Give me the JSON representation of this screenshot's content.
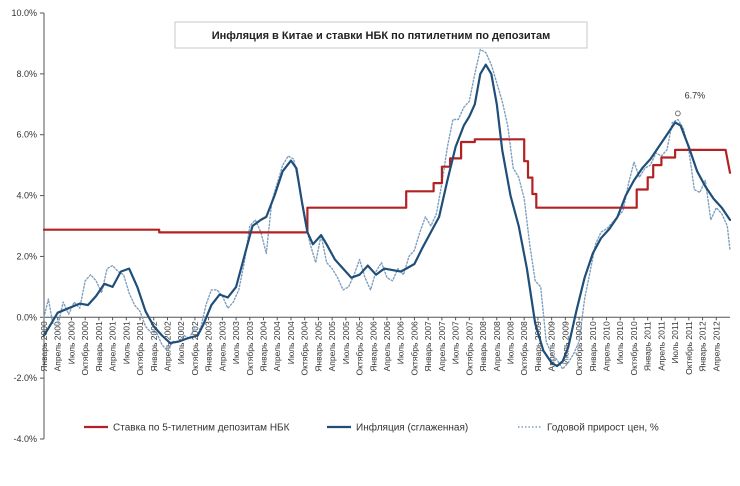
{
  "chart_data": {
    "type": "line",
    "title": "Инфляция в Китае и ставки НБК по пятилетним по депозитам",
    "ylim": [
      -4.0,
      10.0
    ],
    "yticks": [
      -4,
      -2,
      0,
      2,
      4,
      6,
      8,
      10
    ],
    "ytick_labels": [
      "-4.0%",
      "-2.0%",
      "0.0%",
      "2.0%",
      "4.0%",
      "6.0%",
      "8.0%",
      "10.0%"
    ],
    "xlim": [
      2000.0,
      2012.5
    ],
    "x_tick_labels": [
      "Январь 2000",
      "Апрель 2000",
      "Июль 2000",
      "Октябрь 2000",
      "Январь 2001",
      "Апрель 2001",
      "Июль 2001",
      "Октябрь 2001",
      "Январь 2002",
      "Апрель 2002",
      "Июль 2002",
      "Октябрь 2002",
      "Январь 2003",
      "Апрель 2003",
      "Июль 2003",
      "Октябрь 2003",
      "Январь 2004",
      "Апрель 2004",
      "Июль 2004",
      "Октябрь 2004",
      "Январь 2005",
      "Апрель 2005",
      "Июль 2005",
      "Октябрь 2005",
      "Январь 2006",
      "Апрель 2006",
      "Июль 2006",
      "Октябрь 2006",
      "Январь 2007",
      "Апрель 2007",
      "Июль 2007",
      "Октябрь 2007",
      "Январь 2008",
      "Апрель 2008",
      "Июль 2008",
      "Октябрь 2008",
      "Январь 2009",
      "Апрель 2009",
      "Июль 2009",
      "Октябрь 2009",
      "Январь 2010",
      "Апрель 2010",
      "Июль 2010",
      "Октябрь 2010",
      "Январь 2011",
      "Апрель 2011",
      "Июль 2011",
      "Октябрь 2011",
      "Январь 2012",
      "Апрель 2012"
    ],
    "grid": false,
    "legend_position": "bottom",
    "annotation": {
      "text": "6.7%",
      "x": 2011.55,
      "y": 6.7
    },
    "series": [
      {
        "name": "Ставка по 5-тилетним депозитам НБК",
        "color": "#b22222",
        "style": "step",
        "points": [
          [
            2000.0,
            2.88
          ],
          [
            2002.1,
            2.88
          ],
          [
            2002.1,
            2.79
          ],
          [
            2004.8,
            2.79
          ],
          [
            2004.8,
            3.6
          ],
          [
            2006.6,
            3.6
          ],
          [
            2006.6,
            4.14
          ],
          [
            2007.1,
            4.14
          ],
          [
            2007.1,
            4.41
          ],
          [
            2007.25,
            4.41
          ],
          [
            2007.25,
            4.95
          ],
          [
            2007.4,
            4.95
          ],
          [
            2007.4,
            5.22
          ],
          [
            2007.6,
            5.22
          ],
          [
            2007.6,
            5.76
          ],
          [
            2007.85,
            5.76
          ],
          [
            2007.85,
            5.85
          ],
          [
            2008.75,
            5.85
          ],
          [
            2008.75,
            5.13
          ],
          [
            2008.82,
            5.13
          ],
          [
            2008.82,
            4.59
          ],
          [
            2008.9,
            4.59
          ],
          [
            2008.9,
            4.05
          ],
          [
            2008.97,
            4.05
          ],
          [
            2008.97,
            3.6
          ],
          [
            2010.8,
            3.6
          ],
          [
            2010.8,
            4.2
          ],
          [
            2011.0,
            4.2
          ],
          [
            2011.0,
            4.6
          ],
          [
            2011.1,
            4.6
          ],
          [
            2011.1,
            5.0
          ],
          [
            2011.25,
            5.0
          ],
          [
            2011.25,
            5.25
          ],
          [
            2011.5,
            5.25
          ],
          [
            2011.5,
            5.5
          ],
          [
            2012.42,
            5.5
          ],
          [
            2012.5,
            4.75
          ]
        ]
      },
      {
        "name": "Инфляция (сглаженная)",
        "color": "#1f4e79",
        "style": "solid",
        "points": [
          [
            2000.0,
            -0.6
          ],
          [
            2000.1,
            -0.3
          ],
          [
            2000.25,
            0.15
          ],
          [
            2000.45,
            0.3
          ],
          [
            2000.65,
            0.45
          ],
          [
            2000.8,
            0.4
          ],
          [
            2000.95,
            0.7
          ],
          [
            2001.1,
            1.1
          ],
          [
            2001.25,
            1.0
          ],
          [
            2001.4,
            1.5
          ],
          [
            2001.55,
            1.6
          ],
          [
            2001.7,
            1.0
          ],
          [
            2001.85,
            0.2
          ],
          [
            2002.0,
            -0.3
          ],
          [
            2002.15,
            -0.6
          ],
          [
            2002.3,
            -0.85
          ],
          [
            2002.45,
            -0.8
          ],
          [
            2002.6,
            -0.7
          ],
          [
            2002.8,
            -0.6
          ],
          [
            2002.9,
            -0.25
          ],
          [
            2003.05,
            0.4
          ],
          [
            2003.2,
            0.75
          ],
          [
            2003.35,
            0.65
          ],
          [
            2003.5,
            1.0
          ],
          [
            2003.65,
            2.0
          ],
          [
            2003.8,
            3.0
          ],
          [
            2003.95,
            3.2
          ],
          [
            2004.05,
            3.3
          ],
          [
            2004.2,
            4.0
          ],
          [
            2004.35,
            4.8
          ],
          [
            2004.5,
            5.15
          ],
          [
            2004.6,
            4.9
          ],
          [
            2004.7,
            3.8
          ],
          [
            2004.8,
            2.8
          ],
          [
            2004.9,
            2.4
          ],
          [
            2005.05,
            2.7
          ],
          [
            2005.15,
            2.4
          ],
          [
            2005.3,
            1.9
          ],
          [
            2005.45,
            1.6
          ],
          [
            2005.6,
            1.3
          ],
          [
            2005.75,
            1.4
          ],
          [
            2005.9,
            1.7
          ],
          [
            2006.05,
            1.4
          ],
          [
            2006.2,
            1.6
          ],
          [
            2006.35,
            1.55
          ],
          [
            2006.5,
            1.5
          ],
          [
            2006.6,
            1.6
          ],
          [
            2006.75,
            1.75
          ],
          [
            2006.9,
            2.3
          ],
          [
            2007.05,
            2.8
          ],
          [
            2007.2,
            3.3
          ],
          [
            2007.35,
            4.5
          ],
          [
            2007.5,
            5.6
          ],
          [
            2007.65,
            6.3
          ],
          [
            2007.75,
            6.6
          ],
          [
            2007.85,
            7.0
          ],
          [
            2007.95,
            8.0
          ],
          [
            2008.05,
            8.3
          ],
          [
            2008.15,
            8.0
          ],
          [
            2008.25,
            7.0
          ],
          [
            2008.35,
            5.5
          ],
          [
            2008.5,
            4.0
          ],
          [
            2008.65,
            3.0
          ],
          [
            2008.8,
            1.6
          ],
          [
            2008.95,
            -0.2
          ],
          [
            2009.1,
            -1.1
          ],
          [
            2009.25,
            -1.5
          ],
          [
            2009.35,
            -1.6
          ],
          [
            2009.45,
            -1.45
          ],
          [
            2009.55,
            -1.0
          ],
          [
            2009.7,
            0.2
          ],
          [
            2009.85,
            1.3
          ],
          [
            2010.0,
            2.1
          ],
          [
            2010.15,
            2.6
          ],
          [
            2010.3,
            2.9
          ],
          [
            2010.45,
            3.3
          ],
          [
            2010.6,
            4.0
          ],
          [
            2010.75,
            4.5
          ],
          [
            2010.9,
            4.9
          ],
          [
            2011.05,
            5.2
          ],
          [
            2011.2,
            5.6
          ],
          [
            2011.35,
            6.0
          ],
          [
            2011.5,
            6.4
          ],
          [
            2011.6,
            6.3
          ],
          [
            2011.75,
            5.6
          ],
          [
            2011.9,
            4.8
          ],
          [
            2012.05,
            4.3
          ],
          [
            2012.2,
            3.9
          ],
          [
            2012.35,
            3.6
          ],
          [
            2012.5,
            3.2
          ]
        ]
      },
      {
        "name": "Годовой прирост цен, %",
        "color": "#7f9fbf",
        "style": "dotted",
        "points": [
          [
            2000.0,
            0.0
          ],
          [
            2000.08,
            0.6
          ],
          [
            2000.16,
            -0.2
          ],
          [
            2000.25,
            -0.3
          ],
          [
            2000.35,
            0.5
          ],
          [
            2000.45,
            0.1
          ],
          [
            2000.55,
            0.5
          ],
          [
            2000.65,
            0.3
          ],
          [
            2000.75,
            1.2
          ],
          [
            2000.85,
            1.4
          ],
          [
            2000.95,
            1.2
          ],
          [
            2001.05,
            0.8
          ],
          [
            2001.15,
            1.6
          ],
          [
            2001.25,
            1.7
          ],
          [
            2001.35,
            1.5
          ],
          [
            2001.45,
            1.4
          ],
          [
            2001.55,
            0.8
          ],
          [
            2001.65,
            0.4
          ],
          [
            2001.75,
            0.2
          ],
          [
            2001.85,
            -0.3
          ],
          [
            2001.95,
            -0.5
          ],
          [
            2002.05,
            -0.5
          ],
          [
            2002.15,
            -0.9
          ],
          [
            2002.25,
            -1.1
          ],
          [
            2002.35,
            -0.8
          ],
          [
            2002.45,
            -0.8
          ],
          [
            2002.55,
            -0.6
          ],
          [
            2002.65,
            -0.7
          ],
          [
            2002.75,
            -0.3
          ],
          [
            2002.85,
            -0.4
          ],
          [
            2002.95,
            0.4
          ],
          [
            2003.05,
            0.9
          ],
          [
            2003.15,
            0.9
          ],
          [
            2003.25,
            0.7
          ],
          [
            2003.35,
            0.3
          ],
          [
            2003.45,
            0.5
          ],
          [
            2003.55,
            0.9
          ],
          [
            2003.65,
            1.8
          ],
          [
            2003.75,
            3.0
          ],
          [
            2003.85,
            3.2
          ],
          [
            2003.95,
            2.8
          ],
          [
            2004.05,
            2.1
          ],
          [
            2004.15,
            3.8
          ],
          [
            2004.25,
            4.4
          ],
          [
            2004.35,
            5.0
          ],
          [
            2004.45,
            5.3
          ],
          [
            2004.55,
            5.2
          ],
          [
            2004.65,
            4.3
          ],
          [
            2004.75,
            3.2
          ],
          [
            2004.85,
            2.4
          ],
          [
            2004.95,
            1.8
          ],
          [
            2005.05,
            2.7
          ],
          [
            2005.15,
            1.8
          ],
          [
            2005.25,
            1.6
          ],
          [
            2005.35,
            1.3
          ],
          [
            2005.45,
            0.9
          ],
          [
            2005.55,
            1.0
          ],
          [
            2005.65,
            1.4
          ],
          [
            2005.75,
            1.9
          ],
          [
            2005.85,
            1.3
          ],
          [
            2005.95,
            0.9
          ],
          [
            2006.05,
            1.5
          ],
          [
            2006.15,
            1.8
          ],
          [
            2006.25,
            1.3
          ],
          [
            2006.35,
            1.2
          ],
          [
            2006.45,
            1.6
          ],
          [
            2006.55,
            1.4
          ],
          [
            2006.65,
            2.0
          ],
          [
            2006.75,
            2.2
          ],
          [
            2006.85,
            2.8
          ],
          [
            2006.95,
            3.3
          ],
          [
            2007.05,
            3.0
          ],
          [
            2007.15,
            3.4
          ],
          [
            2007.25,
            4.4
          ],
          [
            2007.35,
            5.6
          ],
          [
            2007.45,
            6.5
          ],
          [
            2007.55,
            6.5
          ],
          [
            2007.65,
            6.9
          ],
          [
            2007.75,
            7.1
          ],
          [
            2007.85,
            8.0
          ],
          [
            2007.95,
            8.8
          ],
          [
            2008.05,
            8.7
          ],
          [
            2008.15,
            8.3
          ],
          [
            2008.25,
            7.7
          ],
          [
            2008.35,
            7.1
          ],
          [
            2008.45,
            6.3
          ],
          [
            2008.55,
            4.9
          ],
          [
            2008.65,
            4.6
          ],
          [
            2008.75,
            3.9
          ],
          [
            2008.85,
            2.4
          ],
          [
            2008.95,
            1.2
          ],
          [
            2009.05,
            1.0
          ],
          [
            2009.15,
            -0.8
          ],
          [
            2009.25,
            -1.2
          ],
          [
            2009.35,
            -1.4
          ],
          [
            2009.45,
            -1.7
          ],
          [
            2009.55,
            -1.5
          ],
          [
            2009.65,
            -1.2
          ],
          [
            2009.75,
            -0.8
          ],
          [
            2009.85,
            0.6
          ],
          [
            2009.95,
            1.5
          ],
          [
            2010.05,
            2.4
          ],
          [
            2010.15,
            2.8
          ],
          [
            2010.25,
            2.9
          ],
          [
            2010.35,
            3.1
          ],
          [
            2010.45,
            3.3
          ],
          [
            2010.55,
            3.5
          ],
          [
            2010.65,
            4.4
          ],
          [
            2010.75,
            5.1
          ],
          [
            2010.85,
            4.6
          ],
          [
            2010.95,
            4.9
          ],
          [
            2011.05,
            5.0
          ],
          [
            2011.15,
            5.4
          ],
          [
            2011.25,
            5.3
          ],
          [
            2011.35,
            5.5
          ],
          [
            2011.45,
            6.4
          ],
          [
            2011.55,
            6.5
          ],
          [
            2011.65,
            6.2
          ],
          [
            2011.75,
            5.5
          ],
          [
            2011.85,
            4.2
          ],
          [
            2011.95,
            4.1
          ],
          [
            2012.05,
            4.5
          ],
          [
            2012.15,
            3.2
          ],
          [
            2012.25,
            3.6
          ],
          [
            2012.35,
            3.4
          ],
          [
            2012.45,
            3.0
          ],
          [
            2012.5,
            2.2
          ]
        ]
      }
    ]
  }
}
